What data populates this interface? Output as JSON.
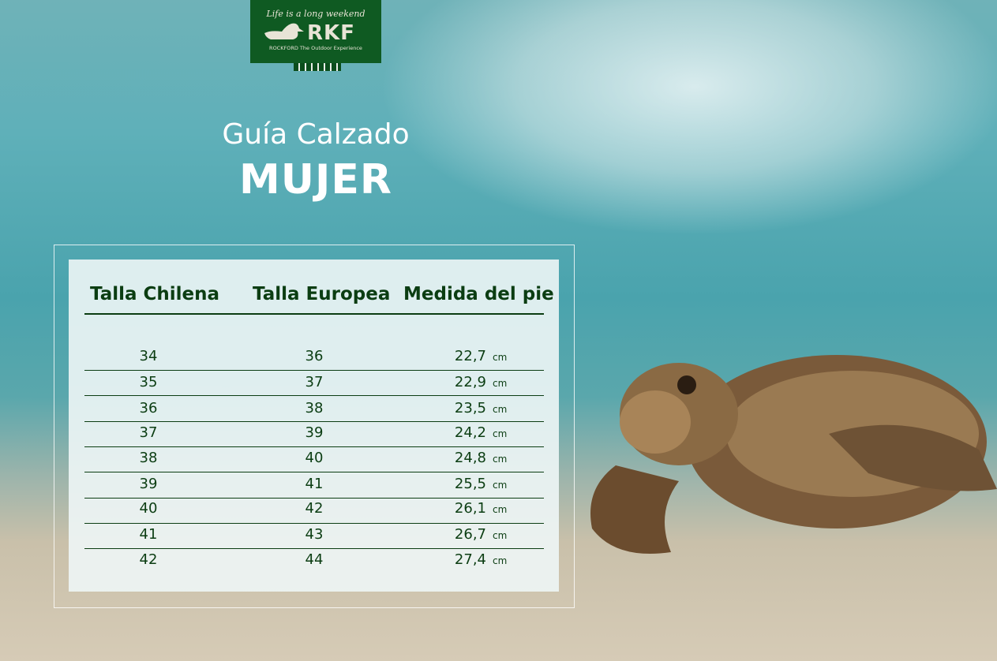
{
  "logo": {
    "tagline": "Life is a long weekend",
    "brand": "RKF",
    "subtitle": "ROCKFORD The Outdoor Experience"
  },
  "title": {
    "line1": "Guía Calzado",
    "line2": "MUJER"
  },
  "table": {
    "headers": [
      "Talla Chilena",
      "Talla Europea",
      "Medida del pie"
    ],
    "unit": "cm",
    "rows": [
      [
        "34",
        "36",
        "22,7"
      ],
      [
        "35",
        "37",
        "22,9"
      ],
      [
        "36",
        "38",
        "23,5"
      ],
      [
        "37",
        "39",
        "24,2"
      ],
      [
        "38",
        "40",
        "24,8"
      ],
      [
        "39",
        "41",
        "25,5"
      ],
      [
        "40",
        "42",
        "26,1"
      ],
      [
        "41",
        "43",
        "26,7"
      ],
      [
        "42",
        "44",
        "27,4"
      ]
    ]
  },
  "colors": {
    "brand_green": "#0f5a22",
    "text_green": "#0b3d12"
  }
}
